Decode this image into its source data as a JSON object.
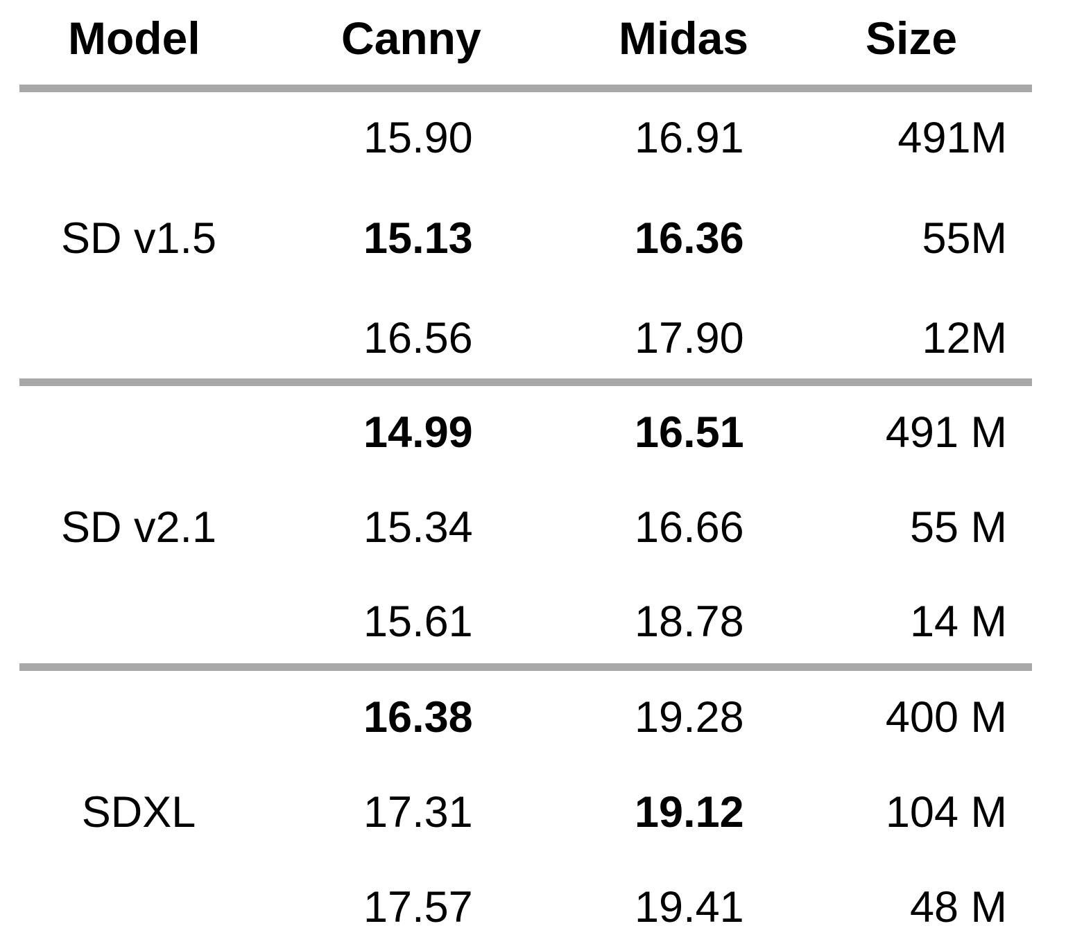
{
  "table": {
    "headers": {
      "model": "Model",
      "canny": "Canny",
      "midas": "Midas",
      "size": "Size"
    },
    "groups": [
      {
        "model": "SD v1.5",
        "rows": [
          {
            "canny": "15.90",
            "canny_bold": false,
            "midas": "16.91",
            "midas_bold": false,
            "size": "491M"
          },
          {
            "canny": "15.13",
            "canny_bold": true,
            "midas": "16.36",
            "midas_bold": true,
            "size": "55M"
          },
          {
            "canny": "16.56",
            "canny_bold": false,
            "midas": "17.90",
            "midas_bold": false,
            "size": "12M"
          }
        ]
      },
      {
        "model": "SD v2.1",
        "rows": [
          {
            "canny": "14.99",
            "canny_bold": true,
            "midas": "16.51",
            "midas_bold": true,
            "size": "491 M"
          },
          {
            "canny": "15.34",
            "canny_bold": false,
            "midas": "16.66",
            "midas_bold": false,
            "size": "55 M"
          },
          {
            "canny": "15.61",
            "canny_bold": false,
            "midas": "18.78",
            "midas_bold": false,
            "size": "14 M"
          }
        ]
      },
      {
        "model": "SDXL",
        "rows": [
          {
            "canny": "16.38",
            "canny_bold": true,
            "midas": "19.28",
            "midas_bold": false,
            "size": "400 M"
          },
          {
            "canny": "17.31",
            "canny_bold": false,
            "midas": "19.12",
            "midas_bold": true,
            "size": "104 M"
          },
          {
            "canny": "17.57",
            "canny_bold": false,
            "midas": "19.41",
            "midas_bold": false,
            "size": "48 M"
          }
        ]
      }
    ],
    "rule_color": "#a8a8a8"
  }
}
